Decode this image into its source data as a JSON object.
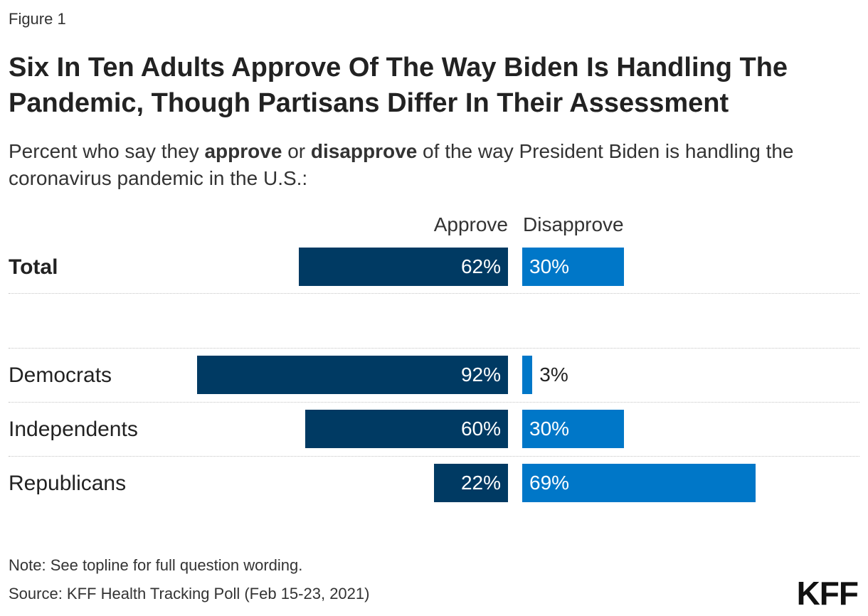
{
  "figure_label": "Figure 1",
  "title": "Six In Ten Adults Approve Of The Way Biden Is Handling The Pandemic, Though Partisans Differ In Their Assessment",
  "subtitle": {
    "part1": "Percent who say they ",
    "approve_word": "approve",
    "part2": " or ",
    "disapprove_word": "disapprove",
    "part3": " of the way President Biden is handling the coronavirus pandemic in the U.S.:"
  },
  "note": "Note: See topline for full question wording.",
  "source": "Source: KFF Health Tracking Poll (Feb 15-23, 2021)",
  "logo_text": "KFF",
  "colors": {
    "approve": "#003a63",
    "disapprove": "#0077c8"
  },
  "chart_data": {
    "type": "bar",
    "orientation": "horizontal-diverging",
    "series": [
      {
        "name": "Approve",
        "values": [
          62,
          92,
          60,
          22
        ]
      },
      {
        "name": "Disapprove",
        "values": [
          30,
          3,
          30,
          69
        ]
      }
    ],
    "categories": [
      "Total",
      "Democrats",
      "Independents",
      "Republicans"
    ],
    "labels": {
      "approve": [
        "62%",
        "92%",
        "60%",
        "22%"
      ],
      "disapprove": [
        "30%",
        "3%",
        "30%",
        "69%"
      ]
    },
    "column_headers": {
      "approve": "Approve",
      "disapprove": "Disapprove"
    },
    "xlim": [
      0,
      100
    ],
    "unit": "%"
  }
}
